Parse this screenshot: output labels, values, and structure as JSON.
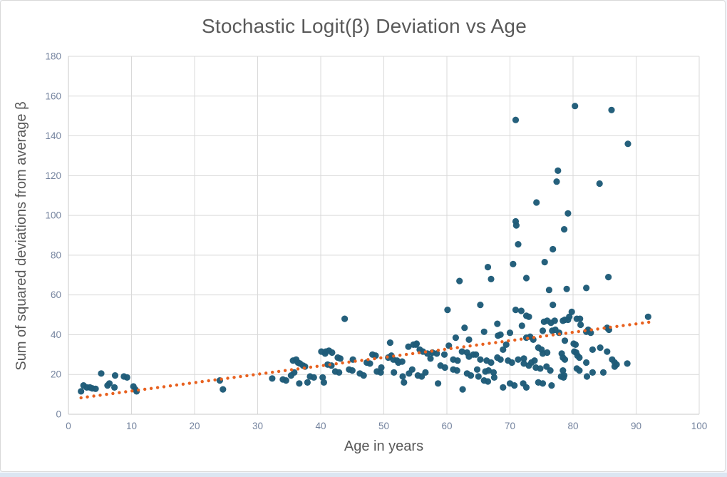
{
  "chart_data": {
    "type": "scatter",
    "title": "Stochastic Logit(β) Deviation vs Age",
    "xlabel": "Age in years",
    "ylabel": "Sum of squared deviations from average β",
    "xlim": [
      0,
      100
    ],
    "ylim": [
      0,
      180
    ],
    "x_ticks": [
      0,
      10,
      20,
      30,
      40,
      50,
      60,
      70,
      80,
      90,
      100
    ],
    "y_ticks": [
      0,
      20,
      40,
      60,
      80,
      100,
      120,
      140,
      160,
      180
    ],
    "grid": true,
    "legend": "none",
    "series": [
      {
        "name": "observations",
        "marker": "circle",
        "color": "#1E5B78",
        "points": [
          [
            2,
            11.5
          ],
          [
            2.4,
            14.5
          ],
          [
            2.9,
            13.5
          ],
          [
            3.4,
            13.5
          ],
          [
            3.8,
            13
          ],
          [
            4.3,
            12.8
          ],
          [
            5.2,
            20.5
          ],
          [
            6.2,
            14.5
          ],
          [
            6.5,
            15.5
          ],
          [
            7.3,
            13.5
          ],
          [
            7.4,
            19.5
          ],
          [
            8.8,
            19
          ],
          [
            9.3,
            18.5
          ],
          [
            10.3,
            14
          ],
          [
            10.6,
            12.5
          ],
          [
            10.8,
            11.5
          ],
          [
            24,
            17
          ],
          [
            24.5,
            12.5
          ],
          [
            32.3,
            18
          ],
          [
            34,
            17.5
          ],
          [
            34.5,
            17
          ],
          [
            35.3,
            19.5
          ],
          [
            35.6,
            27
          ],
          [
            35.8,
            21
          ],
          [
            36.1,
            27.5
          ],
          [
            36.4,
            26
          ],
          [
            36.6,
            15.5
          ],
          [
            36.7,
            25.5
          ],
          [
            37.2,
            24.5
          ],
          [
            37.5,
            24
          ],
          [
            37.9,
            16
          ],
          [
            38.3,
            19
          ],
          [
            38.9,
            18.5
          ],
          [
            40.1,
            31.5
          ],
          [
            40.3,
            18.5
          ],
          [
            40.5,
            16
          ],
          [
            40.7,
            30.5
          ],
          [
            40.8,
            31.5
          ],
          [
            41.1,
            25
          ],
          [
            41.3,
            32
          ],
          [
            41.7,
            24.5
          ],
          [
            41.8,
            31
          ],
          [
            42.3,
            21.5
          ],
          [
            42.7,
            28.5
          ],
          [
            42.9,
            21
          ],
          [
            43.1,
            28
          ],
          [
            43.8,
            48
          ],
          [
            44.5,
            22.5
          ],
          [
            45,
            22
          ],
          [
            45.1,
            27.5
          ],
          [
            46.2,
            20.5
          ],
          [
            46.8,
            19.5
          ],
          [
            47.3,
            26
          ],
          [
            47.8,
            25.5
          ],
          [
            48.2,
            30
          ],
          [
            48.7,
            29.5
          ],
          [
            48.9,
            21.5
          ],
          [
            49.5,
            21
          ],
          [
            49.6,
            23.5
          ],
          [
            50.7,
            28.5
          ],
          [
            51,
            36
          ],
          [
            51.2,
            29.5
          ],
          [
            51.5,
            27.5
          ],
          [
            51.6,
            21
          ],
          [
            52.1,
            27
          ],
          [
            52.3,
            26
          ],
          [
            52.9,
            26.5
          ],
          [
            53,
            19
          ],
          [
            53.2,
            16
          ],
          [
            53.9,
            34
          ],
          [
            54,
            20.5
          ],
          [
            54.5,
            22.5
          ],
          [
            54.7,
            35
          ],
          [
            55.1,
            35
          ],
          [
            55.2,
            35.5
          ],
          [
            55.4,
            19.5
          ],
          [
            55.7,
            32.5
          ],
          [
            56,
            19
          ],
          [
            56.2,
            31.5
          ],
          [
            56.6,
            21
          ],
          [
            56.9,
            30.5
          ],
          [
            57.4,
            28
          ],
          [
            57.7,
            31
          ],
          [
            58.4,
            30.5
          ],
          [
            58.6,
            15.5
          ],
          [
            59,
            24.5
          ],
          [
            59.6,
            30
          ],
          [
            59.7,
            23.5
          ],
          [
            60.1,
            52.5
          ],
          [
            60.3,
            34.5
          ],
          [
            61,
            27.5
          ],
          [
            61,
            22.5
          ],
          [
            61.4,
            38.5
          ],
          [
            61.6,
            22
          ],
          [
            61.7,
            27
          ],
          [
            62,
            67
          ],
          [
            62.4,
            31.5
          ],
          [
            62.5,
            12.5
          ],
          [
            62.8,
            43.5
          ],
          [
            63.2,
            31
          ],
          [
            63.2,
            20.5
          ],
          [
            63.5,
            37.5
          ],
          [
            63.5,
            29
          ],
          [
            63.8,
            19.5
          ],
          [
            64.2,
            30
          ],
          [
            64.6,
            30
          ],
          [
            64.8,
            22.5
          ],
          [
            65,
            19
          ],
          [
            65.3,
            55
          ],
          [
            65.3,
            27.5
          ],
          [
            65.9,
            41.5
          ],
          [
            65.9,
            17
          ],
          [
            66.1,
            21.5
          ],
          [
            66.3,
            27
          ],
          [
            66.5,
            74
          ],
          [
            66.5,
            16.5
          ],
          [
            66.6,
            22
          ],
          [
            67,
            68
          ],
          [
            67,
            26
          ],
          [
            67.4,
            21
          ],
          [
            67.5,
            18.5
          ],
          [
            68,
            45.5
          ],
          [
            68,
            28.5
          ],
          [
            68.1,
            39.5
          ],
          [
            68.5,
            40
          ],
          [
            68.5,
            27.5
          ],
          [
            68.9,
            32.5
          ],
          [
            68.9,
            13.5
          ],
          [
            69.4,
            35
          ],
          [
            69.7,
            27
          ],
          [
            70,
            41
          ],
          [
            70,
            15.5
          ],
          [
            70.3,
            26
          ],
          [
            70.5,
            75.5
          ],
          [
            70.7,
            14.5
          ],
          [
            70.9,
            148
          ],
          [
            70.9,
            97
          ],
          [
            71,
            95
          ],
          [
            70.9,
            52.5
          ],
          [
            71.3,
            85.5
          ],
          [
            71.3,
            27.5
          ],
          [
            71.8,
            52
          ],
          [
            71.9,
            44.5
          ],
          [
            72.1,
            15.5
          ],
          [
            72.2,
            28
          ],
          [
            72.2,
            25.5
          ],
          [
            72.6,
            68.5
          ],
          [
            72.6,
            49.5
          ],
          [
            72.6,
            38.5
          ],
          [
            72.6,
            13.5
          ],
          [
            73,
            49
          ],
          [
            73,
            24.5
          ],
          [
            73.2,
            39
          ],
          [
            73.4,
            26
          ],
          [
            73.7,
            37.5
          ],
          [
            73.9,
            27
          ],
          [
            74.1,
            23.5
          ],
          [
            74.2,
            106.5
          ],
          [
            74.5,
            33.5
          ],
          [
            74.5,
            16
          ],
          [
            74.8,
            23
          ],
          [
            75,
            32.5
          ],
          [
            75.2,
            42
          ],
          [
            75.2,
            30.5
          ],
          [
            75.2,
            15.5
          ],
          [
            75.4,
            46.5
          ],
          [
            75.5,
            76.5
          ],
          [
            75.8,
            24
          ],
          [
            75.9,
            47
          ],
          [
            75.9,
            31
          ],
          [
            76.2,
            62.5
          ],
          [
            76.4,
            22
          ],
          [
            76.5,
            46
          ],
          [
            76.6,
            14.5
          ],
          [
            76.7,
            42
          ],
          [
            76.8,
            83
          ],
          [
            76.8,
            55
          ],
          [
            77.1,
            47
          ],
          [
            77.2,
            42.5
          ],
          [
            77.4,
            117
          ],
          [
            77.6,
            122.5
          ],
          [
            77.8,
            41
          ],
          [
            78.1,
            19
          ],
          [
            78.2,
            30.5
          ],
          [
            78.4,
            47
          ],
          [
            78.4,
            28.5
          ],
          [
            78.4,
            22
          ],
          [
            78.5,
            18.5
          ],
          [
            78.6,
            93
          ],
          [
            78.6,
            19.5
          ],
          [
            78.7,
            47.5
          ],
          [
            78.7,
            37
          ],
          [
            78.7,
            27.5
          ],
          [
            79,
            63
          ],
          [
            79.2,
            101
          ],
          [
            79.2,
            47.5
          ],
          [
            79.4,
            49
          ],
          [
            79.8,
            51.5
          ],
          [
            80.1,
            35.5
          ],
          [
            80.2,
            31.5
          ],
          [
            80.3,
            155
          ],
          [
            80.4,
            35
          ],
          [
            80.5,
            31
          ],
          [
            80.6,
            48
          ],
          [
            80.6,
            23
          ],
          [
            80.7,
            29.5
          ],
          [
            81,
            28.5
          ],
          [
            81,
            22
          ],
          [
            81.1,
            48
          ],
          [
            81.2,
            45
          ],
          [
            82.1,
            63.5
          ],
          [
            82.1,
            41.5
          ],
          [
            82.1,
            26
          ],
          [
            82.2,
            19
          ],
          [
            82.4,
            42.5
          ],
          [
            82.8,
            41
          ],
          [
            83.1,
            32.5
          ],
          [
            83.1,
            21
          ],
          [
            84.2,
            116
          ],
          [
            84.3,
            33.5
          ],
          [
            84.8,
            21
          ],
          [
            85.4,
            43.5
          ],
          [
            85.4,
            31.5
          ],
          [
            85.6,
            69
          ],
          [
            85.7,
            42.5
          ],
          [
            86.1,
            153
          ],
          [
            86.2,
            27.5
          ],
          [
            86.6,
            26
          ],
          [
            86.6,
            24
          ],
          [
            86.9,
            25
          ],
          [
            88.6,
            25.5
          ],
          [
            88.7,
            136
          ],
          [
            91.9,
            49
          ]
        ]
      }
    ],
    "trendline": {
      "style": "dotted",
      "color": "#E8611F",
      "x_start": 2,
      "y_start": 8.3,
      "x_end": 92,
      "y_end": 46.3
    }
  },
  "colors": {
    "title": "#595959",
    "axis_title": "#595959",
    "tick_label": "#74839E",
    "gridline": "#D9D9D9",
    "plot_border": "#C9C9C9",
    "point": "#1E5B78",
    "trendline": "#E8611F",
    "background": "#FFFFFF",
    "card_border": "#D9D9D9",
    "bottom_strip": "#DCE6F2"
  }
}
